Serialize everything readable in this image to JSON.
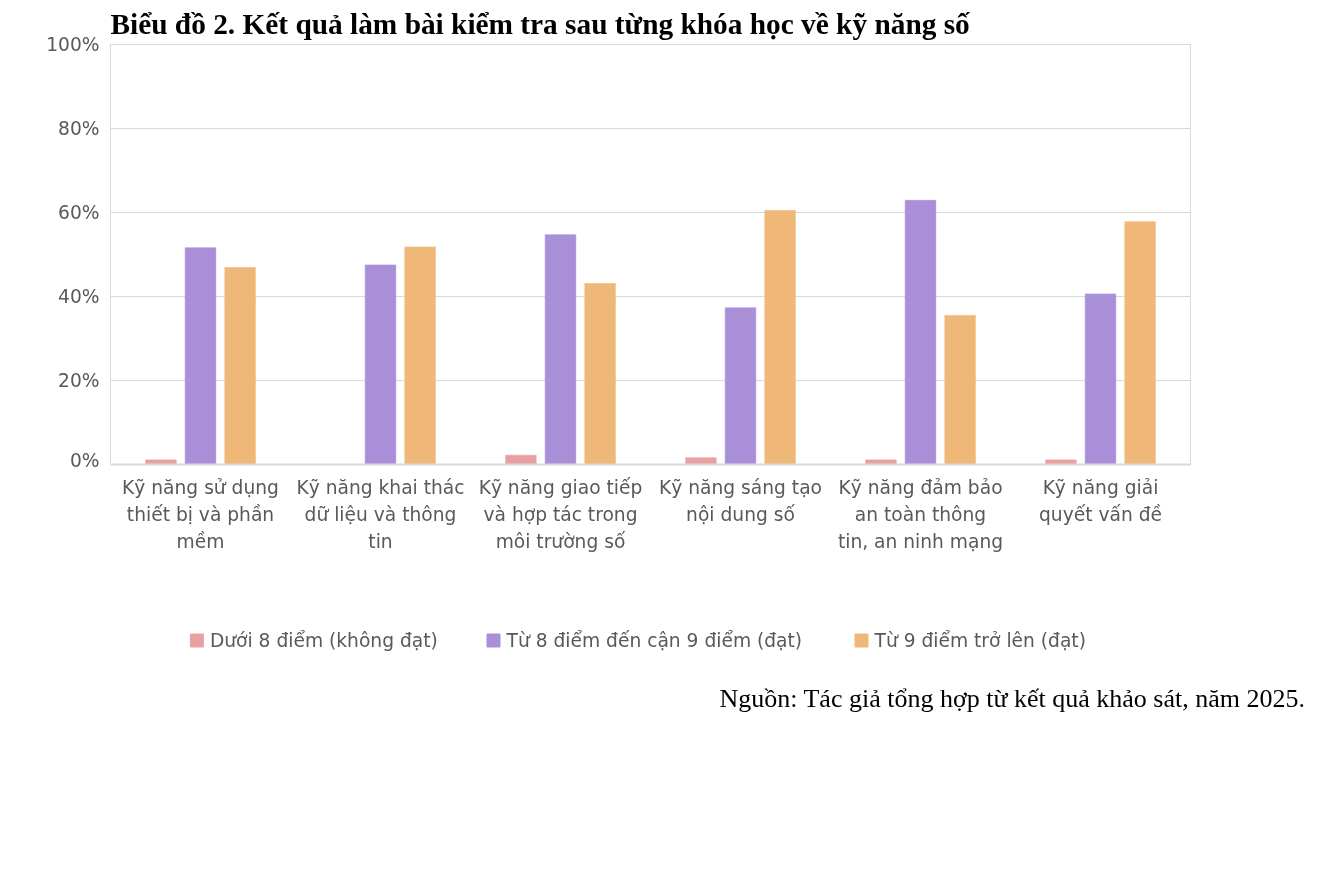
{
  "chart_data": {
    "type": "bar",
    "title": "Biểu đồ 2. Kết quả làm bài kiểm tra sau từng khóa học về kỹ năng số",
    "categories": [
      "Kỹ năng sử dụng thiết bị và phần mềm",
      "Kỹ năng khai thác dữ liệu và thông tin",
      "Kỹ năng giao tiếp và hợp tác trong môi trường số",
      "Kỹ năng sáng tạo nội dung số",
      "Kỹ năng đảm bảo an toàn thông tin, an ninh mạng",
      "Kỹ năng giải quyết vấn đề"
    ],
    "series": [
      {
        "name": "Dưới 8 điểm (không đạt)",
        "color": "#e8a0a0",
        "values": [
          1.1,
          0,
          2.2,
          1.6,
          1.1,
          1.1
        ]
      },
      {
        "name": "Từ 8 điểm đến cận 9 điểm (đạt)",
        "color": "#a88fd8",
        "values": [
          51.6,
          47.5,
          54.7,
          37.3,
          62.9,
          40.6
        ]
      },
      {
        "name": "Từ 9 điểm trở lên (đạt)",
        "color": "#f0b878",
        "values": [
          46.9,
          51.8,
          43.1,
          60.5,
          35.5,
          57.8
        ]
      }
    ],
    "ylim": [
      0,
      100
    ],
    "yticks": [
      {
        "value": 0,
        "label": "0%"
      },
      {
        "value": 20,
        "label": "20%"
      },
      {
        "value": 40,
        "label": "40%"
      },
      {
        "value": 60,
        "label": "60%"
      },
      {
        "value": 80,
        "label": "80%"
      },
      {
        "value": 100,
        "label": "100%"
      }
    ],
    "grid": "y",
    "legend": "bottom",
    "annotations": [
      "Nguồn: Tác giả tổng hợp từ kết quả khảo sát, năm 2025."
    ]
  }
}
